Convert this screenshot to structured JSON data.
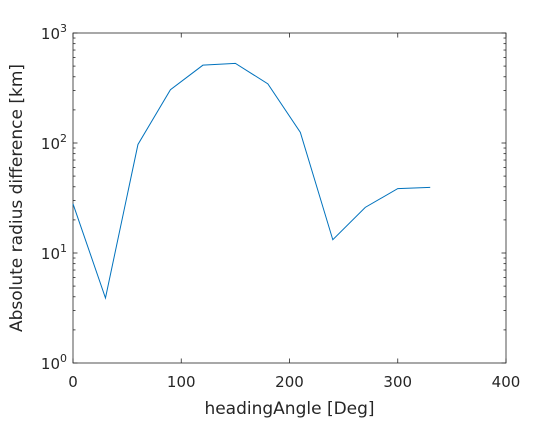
{
  "chart_data": {
    "type": "line",
    "title": "",
    "xlabel": "headingAngle [Deg]",
    "ylabel": "Absolute radius difference [km]",
    "xlim": [
      0,
      400
    ],
    "ylim": [
      1,
      1000
    ],
    "yscale": "log",
    "grid": false,
    "legend": "none",
    "x_ticks": [
      "0",
      "100",
      "200",
      "300",
      "400"
    ],
    "y_ticks": [
      {
        "base": "10",
        "exp": "0",
        "value": 1
      },
      {
        "base": "10",
        "exp": "1",
        "value": 10
      },
      {
        "base": "10",
        "exp": "2",
        "value": 100
      },
      {
        "base": "10",
        "exp": "3",
        "value": 1000
      }
    ],
    "series": [
      {
        "color": "#0072BD",
        "x": [
          0,
          30,
          60,
          90,
          120,
          150,
          180,
          210,
          240,
          270,
          300,
          330
        ],
        "y": [
          28,
          3.9,
          97,
          305,
          510,
          530,
          345,
          125,
          13.2,
          26,
          38.5,
          39.5
        ]
      }
    ]
  }
}
